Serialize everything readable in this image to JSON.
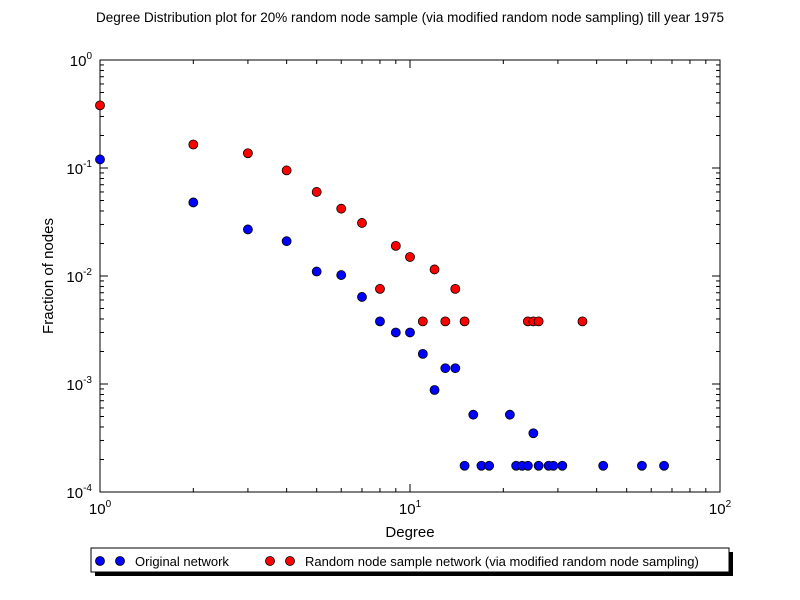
{
  "chart_data": {
    "type": "scatter",
    "title": "Degree Distribution plot for 20% random node sample (via modified random node sampling) till year 1975",
    "xlabel": "Degree",
    "ylabel": "Fraction of nodes",
    "xscale": "log",
    "yscale": "log",
    "xlim": [
      1,
      100
    ],
    "ylim": [
      0.0001,
      1
    ],
    "x_ticks": [
      {
        "base": "10",
        "exp": "0",
        "value": 1
      },
      {
        "base": "10",
        "exp": "1",
        "value": 10
      },
      {
        "base": "10",
        "exp": "2",
        "value": 100
      }
    ],
    "y_ticks": [
      {
        "base": "10",
        "exp": "0",
        "value": 1
      },
      {
        "base": "10",
        "exp": "-1",
        "value": 0.1
      },
      {
        "base": "10",
        "exp": "-2",
        "value": 0.01
      },
      {
        "base": "10",
        "exp": "-3",
        "value": 0.001
      },
      {
        "base": "10",
        "exp": "-4",
        "value": 0.0001
      }
    ],
    "legend_position": "bottom-center-outside",
    "series": [
      {
        "name": "Original network",
        "color": "#0000ff",
        "points": [
          [
            1,
            0.12
          ],
          [
            2,
            0.048
          ],
          [
            3,
            0.027
          ],
          [
            4,
            0.021
          ],
          [
            5,
            0.011
          ],
          [
            6,
            0.0102
          ],
          [
            7,
            0.0064
          ],
          [
            8,
            0.0038
          ],
          [
            9,
            0.003
          ],
          [
            10,
            0.003
          ],
          [
            11,
            0.0019
          ],
          [
            12,
            0.00088
          ],
          [
            13,
            0.0014
          ],
          [
            14,
            0.0014
          ],
          [
            15,
            0.000175
          ],
          [
            16,
            0.00052
          ],
          [
            17,
            0.000175
          ],
          [
            18,
            0.000175
          ],
          [
            21,
            0.00052
          ],
          [
            22,
            0.000175
          ],
          [
            23,
            0.000175
          ],
          [
            24,
            0.000175
          ],
          [
            25,
            0.00035
          ],
          [
            26,
            0.000175
          ],
          [
            28,
            0.000175
          ],
          [
            29,
            0.000175
          ],
          [
            31,
            0.000175
          ],
          [
            42,
            0.000175
          ],
          [
            56,
            0.000175
          ],
          [
            66,
            0.000175
          ]
        ]
      },
      {
        "name": "Random node sample network (via modified random node sampling)",
        "color": "#ff0000",
        "points": [
          [
            1,
            0.38
          ],
          [
            2,
            0.165
          ],
          [
            3,
            0.137
          ],
          [
            4,
            0.095
          ],
          [
            5,
            0.06
          ],
          [
            6,
            0.042
          ],
          [
            7,
            0.031
          ],
          [
            8,
            0.0076
          ],
          [
            9,
            0.019
          ],
          [
            10,
            0.015
          ],
          [
            11,
            0.0038
          ],
          [
            12,
            0.0115
          ],
          [
            13,
            0.0038
          ],
          [
            14,
            0.0076
          ],
          [
            15,
            0.0038
          ],
          [
            24,
            0.0038
          ],
          [
            25,
            0.0038
          ],
          [
            26,
            0.0038
          ],
          [
            36,
            0.0038
          ]
        ]
      }
    ]
  }
}
